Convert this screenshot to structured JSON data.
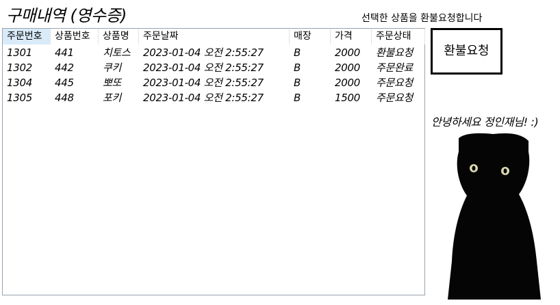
{
  "page": {
    "title": "구매내역 (영수증)",
    "hint": "선택한 상품을 환불요청합니다",
    "refund_button": "환불요청",
    "greeting": "안녕하세요 정인재님! :)"
  },
  "table": {
    "columns": [
      "주문번호",
      "상품번호",
      "상품명",
      "주문날짜",
      "매장",
      "가격",
      "주문상태"
    ],
    "rows": [
      [
        "1301",
        "441",
        "치토스",
        "2023-01-04 오전 2:55:27",
        "B",
        "2000",
        "환불요청"
      ],
      [
        "1302",
        "442",
        "쿠키",
        "2023-01-04 오전 2:55:27",
        "B",
        "2000",
        "주문완료"
      ],
      [
        "1304",
        "445",
        "뽀또",
        "2023-01-04 오전 2:55:27",
        "B",
        "2000",
        "주문요청"
      ],
      [
        "1305",
        "448",
        "포키",
        "2023-01-04 오전 2:55:27",
        "B",
        "1500",
        "주문요청"
      ]
    ]
  },
  "icons": {
    "profile_image": "black-cat-photo"
  },
  "colors": {
    "header_selected": "#d9ebf9",
    "border": "#9aa3ad"
  }
}
